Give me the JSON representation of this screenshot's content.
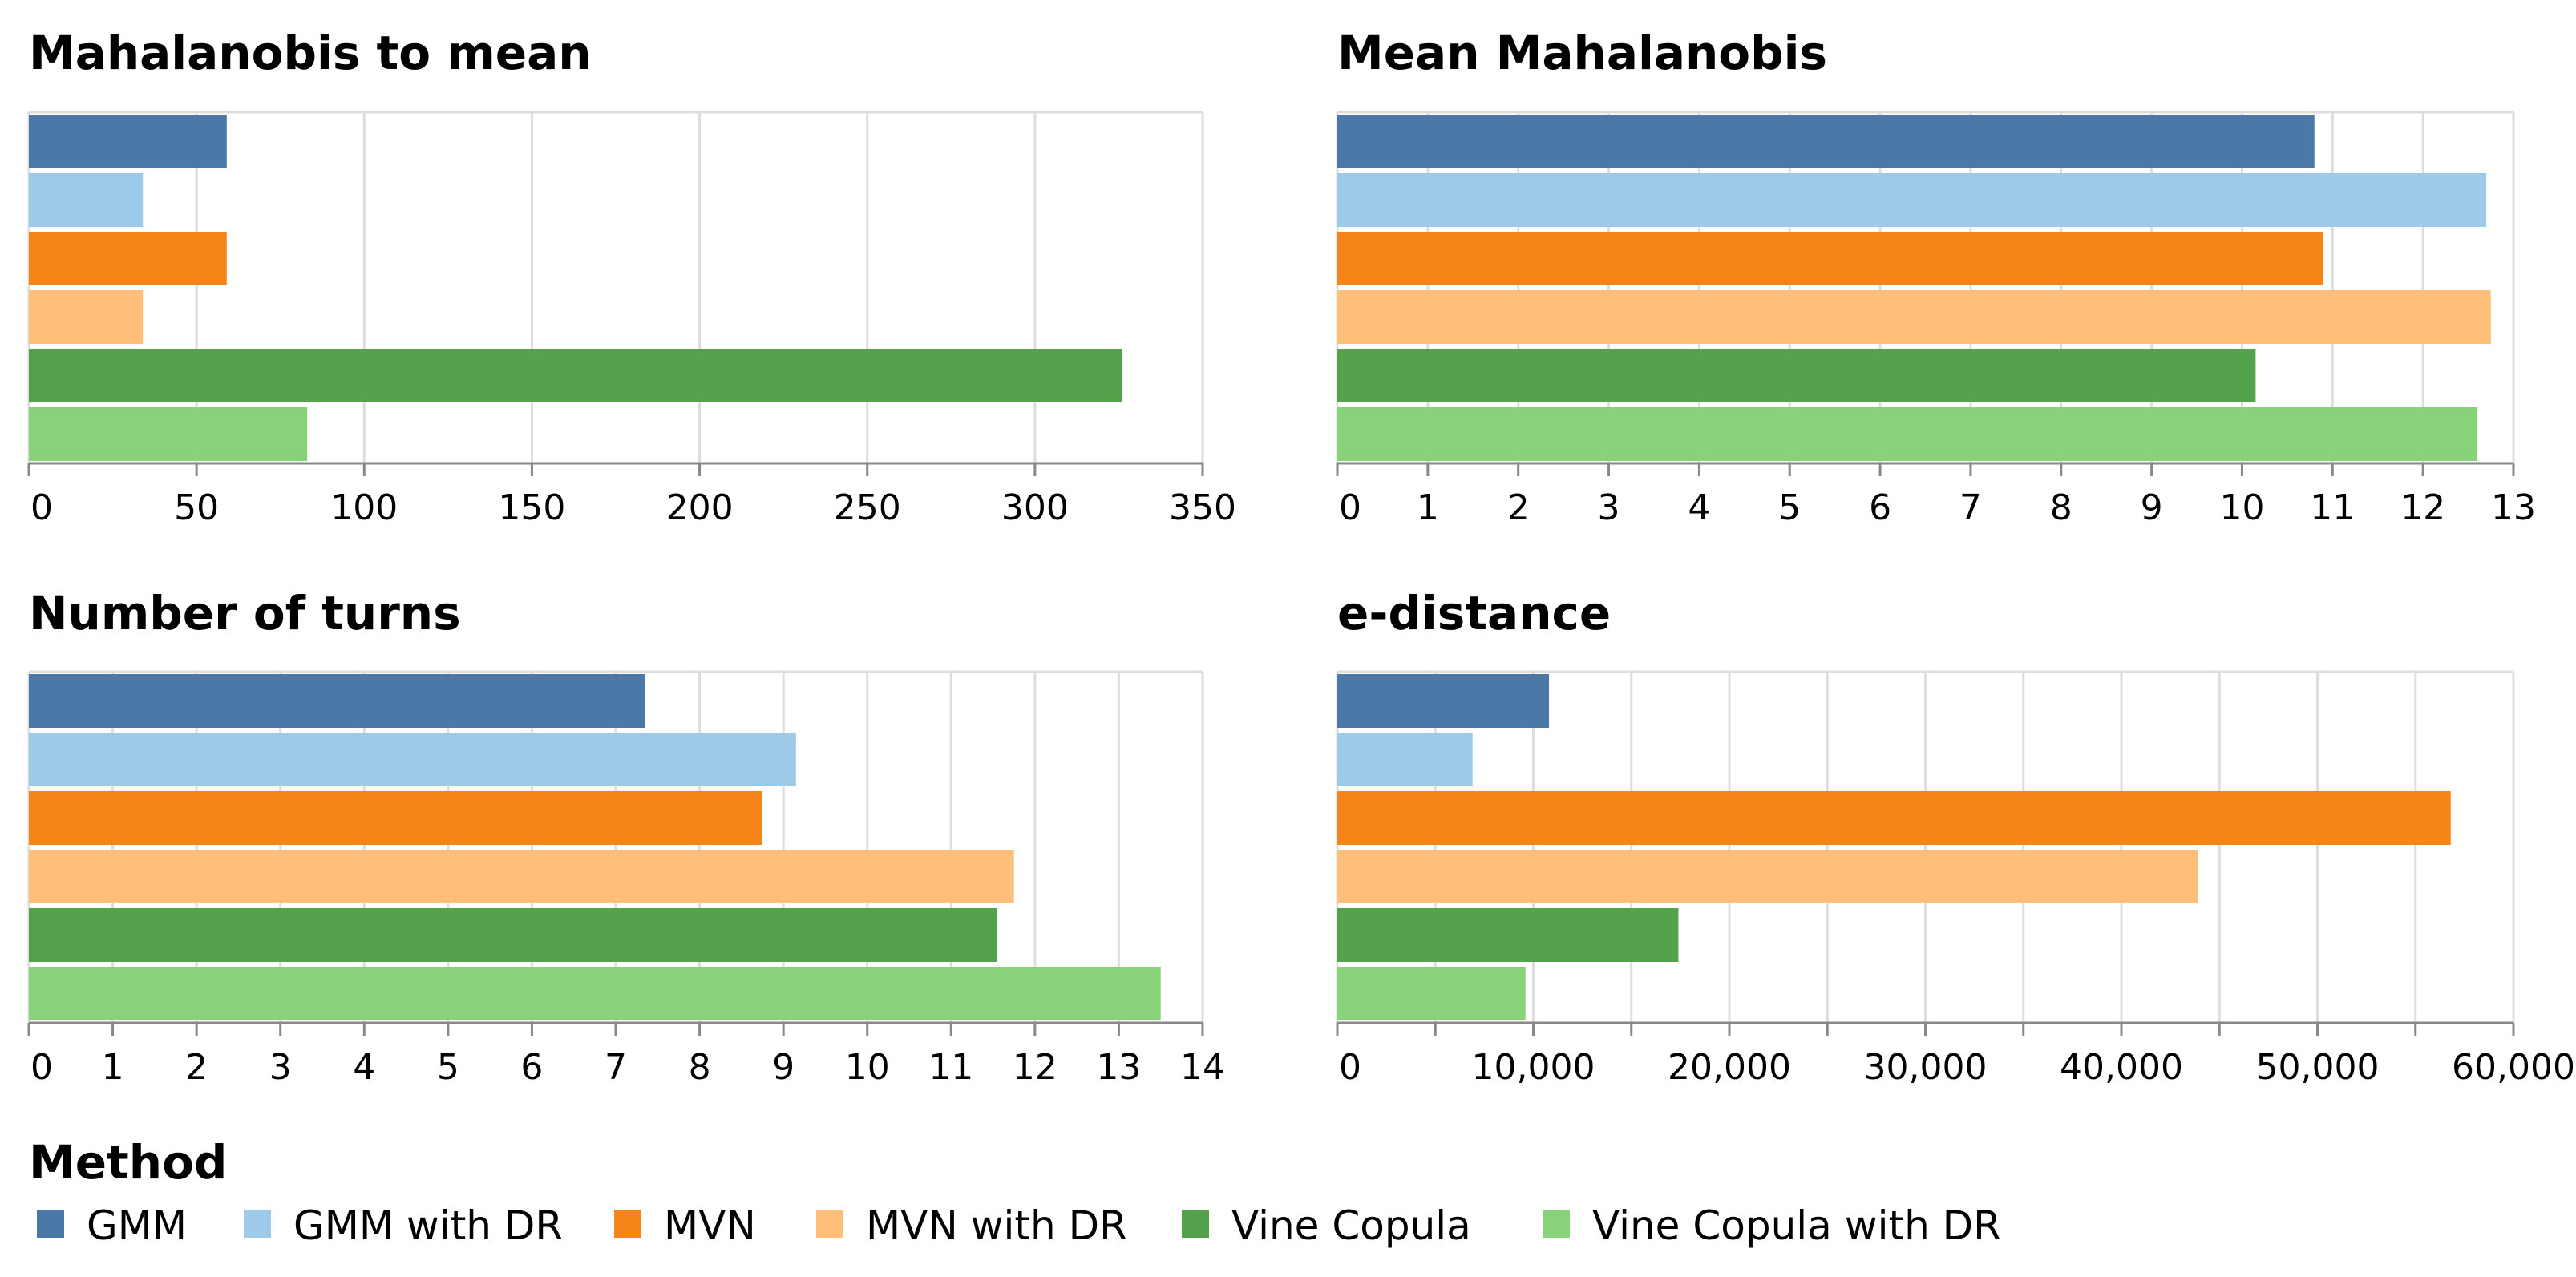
{
  "chart_data": [
    {
      "type": "bar",
      "orientation": "horizontal",
      "title": "Mahalanobis to mean",
      "categories": [
        "GMM",
        "GMM with DR",
        "MVN",
        "MVN with DR",
        "Vine Copula",
        "Vine Copula with DR"
      ],
      "values": [
        59,
        34,
        59,
        34,
        326,
        83
      ],
      "xlim": [
        0,
        350
      ],
      "ticks": [
        0,
        50,
        100,
        150,
        200,
        250,
        300,
        350
      ],
      "tick_labels": [
        "0",
        "50",
        "100",
        "150",
        "200",
        "250",
        "300",
        "350"
      ],
      "grid": true
    },
    {
      "type": "bar",
      "orientation": "horizontal",
      "title": "Mean Mahalanobis",
      "categories": [
        "GMM",
        "GMM with DR",
        "MVN",
        "MVN with DR",
        "Vine Copula",
        "Vine Copula with DR"
      ],
      "values": [
        10.8,
        12.7,
        10.9,
        12.75,
        10.15,
        12.6
      ],
      "xlim": [
        0,
        13
      ],
      "ticks": [
        0,
        1,
        2,
        3,
        4,
        5,
        6,
        7,
        8,
        9,
        10,
        11,
        12,
        13
      ],
      "tick_labels": [
        "0",
        "1",
        "2",
        "3",
        "4",
        "5",
        "6",
        "7",
        "8",
        "9",
        "10",
        "11",
        "12",
        "13"
      ],
      "grid": true
    },
    {
      "type": "bar",
      "orientation": "horizontal",
      "title": "Number of turns",
      "categories": [
        "GMM",
        "GMM with DR",
        "MVN",
        "MVN with DR",
        "Vine Copula",
        "Vine Copula with DR"
      ],
      "values": [
        7.35,
        9.15,
        8.75,
        11.75,
        11.55,
        13.5
      ],
      "xlim": [
        0,
        14
      ],
      "ticks": [
        0,
        1,
        2,
        3,
        4,
        5,
        6,
        7,
        8,
        9,
        10,
        11,
        12,
        13,
        14
      ],
      "tick_labels": [
        "0",
        "1",
        "2",
        "3",
        "4",
        "5",
        "6",
        "7",
        "8",
        "9",
        "10",
        "11",
        "12",
        "13",
        "14"
      ],
      "grid": true
    },
    {
      "type": "bar",
      "orientation": "horizontal",
      "title": "e-distance",
      "categories": [
        "GMM",
        "GMM with DR",
        "MVN",
        "MVN with DR",
        "Vine Copula",
        "Vine Copula with DR"
      ],
      "values": [
        10800,
        6900,
        56800,
        43900,
        17400,
        9600
      ],
      "xlim": [
        0,
        60000
      ],
      "ticks": [
        0,
        5000,
        10000,
        15000,
        20000,
        25000,
        30000,
        35000,
        40000,
        45000,
        50000,
        55000,
        60000
      ],
      "tick_labels": [
        "0",
        "",
        "10,000",
        "",
        "20,000",
        "",
        "30,000",
        "",
        "40,000",
        "",
        "50,000",
        "",
        "60,000"
      ],
      "grid": true
    }
  ],
  "legend": {
    "title": "Method",
    "items": [
      {
        "label": "GMM",
        "color": "#4c78a8"
      },
      {
        "label": "GMM with DR",
        "color": "#9ecae9"
      },
      {
        "label": "MVN",
        "color": "#f58518"
      },
      {
        "label": "MVN with DR",
        "color": "#ffbf79"
      },
      {
        "label": "Vine Copula",
        "color": "#54a24b"
      },
      {
        "label": "Vine Copula with DR",
        "color": "#88d27a"
      }
    ]
  },
  "colors": {
    "grid": "#dddddd",
    "axis": "#888888"
  }
}
